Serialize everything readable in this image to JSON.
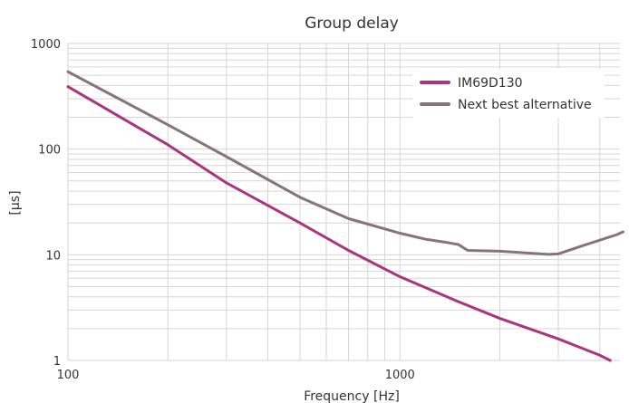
{
  "chart_data": {
    "type": "line",
    "title": "Group delay",
    "xlabel": "Frequency [Hz]",
    "ylabel": "[µs]",
    "x_scale": "log",
    "y_scale": "log",
    "xlim": [
      100,
      4600
    ],
    "ylim": [
      1,
      1000
    ],
    "x_ticks": [
      {
        "value": 100,
        "label": "100"
      },
      {
        "value": 1000,
        "label": "1000"
      }
    ],
    "y_ticks": [
      {
        "value": 1,
        "label": "1"
      },
      {
        "value": 10,
        "label": "10"
      },
      {
        "value": 100,
        "label": "100"
      },
      {
        "value": 1000,
        "label": "1000"
      }
    ],
    "grid": true,
    "legend_position": "top-right",
    "colors": {
      "im69d130": "#a8367f",
      "alternative": "#86737b",
      "grid": "#d6d6d6",
      "text": "#333333"
    },
    "series": [
      {
        "name": "IM69D130",
        "color": "#a8367f",
        "points": [
          [
            100,
            390
          ],
          [
            200,
            110
          ],
          [
            300,
            48
          ],
          [
            500,
            20
          ],
          [
            700,
            11
          ],
          [
            1000,
            6.2
          ],
          [
            1500,
            3.6
          ],
          [
            2000,
            2.5
          ],
          [
            3000,
            1.6
          ],
          [
            4000,
            1.12
          ],
          [
            4300,
            1.0
          ]
        ]
      },
      {
        "name": "Next best alternative",
        "color": "#86737b",
        "points": [
          [
            100,
            540
          ],
          [
            200,
            170
          ],
          [
            300,
            85
          ],
          [
            500,
            35
          ],
          [
            700,
            22
          ],
          [
            1000,
            16
          ],
          [
            1200,
            14
          ],
          [
            1400,
            13
          ],
          [
            1500,
            12.5
          ],
          [
            1600,
            11
          ],
          [
            2000,
            10.8
          ],
          [
            2800,
            10.1
          ],
          [
            3000,
            10.2
          ],
          [
            3500,
            12
          ],
          [
            4500,
            15.5
          ],
          [
            4700,
            16.5
          ]
        ]
      }
    ]
  }
}
